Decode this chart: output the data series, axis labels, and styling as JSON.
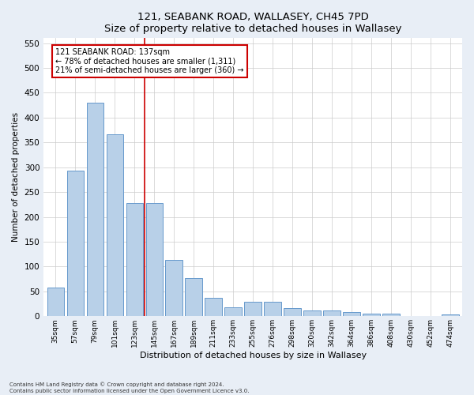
{
  "title": "121, SEABANK ROAD, WALLASEY, CH45 7PD",
  "subtitle": "Size of property relative to detached houses in Wallasey",
  "xlabel": "Distribution of detached houses by size in Wallasey",
  "ylabel": "Number of detached properties",
  "categories": [
    "35sqm",
    "57sqm",
    "79sqm",
    "101sqm",
    "123sqm",
    "145sqm",
    "167sqm",
    "189sqm",
    "211sqm",
    "233sqm",
    "255sqm",
    "276sqm",
    "298sqm",
    "320sqm",
    "342sqm",
    "364sqm",
    "386sqm",
    "408sqm",
    "430sqm",
    "452sqm",
    "474sqm"
  ],
  "values": [
    57,
    294,
    430,
    367,
    228,
    228,
    113,
    77,
    37,
    18,
    29,
    29,
    16,
    11,
    11,
    8,
    5,
    5,
    0,
    0,
    4
  ],
  "bar_color": "#b8d0e8",
  "bar_edge_color": "#6699cc",
  "vline_x": 4.5,
  "vline_color": "#cc0000",
  "annotation_title": "121 SEABANK ROAD: 137sqm",
  "annotation_line1": "← 78% of detached houses are smaller (1,311)",
  "annotation_line2": "21% of semi-detached houses are larger (360) →",
  "annotation_box_color": "#ffffff",
  "annotation_box_edge": "#cc0000",
  "ylim": [
    0,
    560
  ],
  "yticks": [
    0,
    50,
    100,
    150,
    200,
    250,
    300,
    350,
    400,
    450,
    500,
    550
  ],
  "footer_line1": "Contains HM Land Registry data © Crown copyright and database right 2024.",
  "footer_line2": "Contains public sector information licensed under the Open Government Licence v3.0.",
  "bg_color": "#e8eef6",
  "plot_bg_color": "#ffffff"
}
